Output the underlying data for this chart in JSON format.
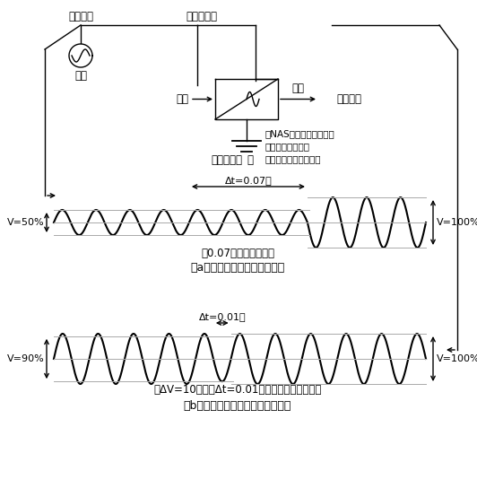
{
  "fig_width": 5.32,
  "fig_height": 5.54,
  "bg_color": "#ffffff",
  "label_shoyo": "商用電源",
  "label_kosoku": "高速開閉器",
  "label_kouryu_in": "交流",
  "label_chokuryu": "直流",
  "label_kouryu_out": "交流",
  "label_juyou": "重要負荷",
  "label_battery": "バッテリー",
  "label_battery_note1": "（NAS電池、レドックス",
  "label_battery_note2": "フロー電池なども",
  "label_battery_note3": "採用されつつある。）",
  "delta_t_a": "Δt=0.07秒",
  "delta_t_b": "Δt=0.01秒",
  "v50_label": "V=50%",
  "v90_label": "V=90%",
  "v100a_label": "V=100%",
  "v100b_label": "V=100%",
  "note_a": "（0.07秒程度が最短）",
  "waveform_a_label": "（a）電力系統側の電圧波形例",
  "note_b": "（ΔV=10％、　Δt=0.01秒程度が必要になる）",
  "waveform_b_label": "（b）対策付きの部分の電圧波形例"
}
